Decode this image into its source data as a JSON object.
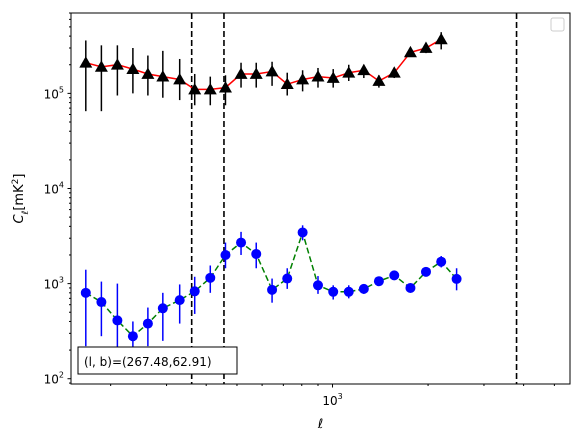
{
  "chart_data": {
    "type": "scatter",
    "x_scale": "log",
    "y_scale": "log",
    "xlim": [
      150,
      5600
    ],
    "ylim": [
      88,
      700000
    ],
    "xlabel": "ℓ",
    "ylabel_main": "C",
    "ylabel_sub": "ℓ",
    "ylabel_unit": "[mK",
    "ylabel_unit_sup": "2",
    "ylabel_unit_end": "]",
    "x_tick_labels": [
      {
        "value": 1000,
        "base": "10",
        "exp": "3"
      }
    ],
    "y_tick_labels": [
      {
        "value": 100,
        "base": "10",
        "exp": "2"
      },
      {
        "value": 1000,
        "base": "10",
        "exp": "3"
      },
      {
        "value": 10000,
        "base": "10",
        "exp": "4"
      },
      {
        "value": 100000,
        "base": "10",
        "exp": "5"
      }
    ],
    "vlines": [
      360,
      455,
      3800
    ],
    "annotation": "(l, b)=(267.48,62.91)",
    "legend": {
      "position": "top-right",
      "entries": []
    },
    "series": [
      {
        "marker": "triangle",
        "marker_color": "#000000",
        "line_color": "#ff0000",
        "line_style": "solid",
        "points": [
          {
            "x": 167,
            "y": 210000,
            "lo": 65000,
            "hi": 360000
          },
          {
            "x": 187,
            "y": 190000,
            "lo": 65000,
            "hi": 320000
          },
          {
            "x": 210,
            "y": 200000,
            "lo": 95000,
            "hi": 320000
          },
          {
            "x": 235,
            "y": 180000,
            "lo": 100000,
            "hi": 300000
          },
          {
            "x": 262,
            "y": 160000,
            "lo": 95000,
            "hi": 250000
          },
          {
            "x": 292,
            "y": 150000,
            "lo": 90000,
            "hi": 280000
          },
          {
            "x": 330,
            "y": 140000,
            "lo": 85000,
            "hi": 230000
          },
          {
            "x": 368,
            "y": 110000,
            "lo": 75000,
            "hi": 160000
          },
          {
            "x": 412,
            "y": 110000,
            "lo": 75000,
            "hi": 150000
          },
          {
            "x": 460,
            "y": 115000,
            "lo": 75000,
            "hi": 155000
          },
          {
            "x": 515,
            "y": 160000,
            "lo": 115000,
            "hi": 210000
          },
          {
            "x": 575,
            "y": 160000,
            "lo": 115000,
            "hi": 210000
          },
          {
            "x": 645,
            "y": 170000,
            "lo": 120000,
            "hi": 215000
          },
          {
            "x": 720,
            "y": 125000,
            "lo": 95000,
            "hi": 165000
          },
          {
            "x": 805,
            "y": 140000,
            "lo": 105000,
            "hi": 175000
          },
          {
            "x": 900,
            "y": 150000,
            "lo": 115000,
            "hi": 185000
          },
          {
            "x": 1005,
            "y": 145000,
            "lo": 115000,
            "hi": 180000
          },
          {
            "x": 1125,
            "y": 165000,
            "lo": 135000,
            "hi": 200000
          },
          {
            "x": 1255,
            "y": 175000,
            "lo": 145000,
            "hi": 200000
          },
          {
            "x": 1400,
            "y": 135000,
            "lo": 115000,
            "hi": 155000
          },
          {
            "x": 1565,
            "y": 165000,
            "lo": 145000,
            "hi": 185000
          },
          {
            "x": 1760,
            "y": 270000,
            "lo": 245000,
            "hi": 300000
          },
          {
            "x": 1970,
            "y": 300000,
            "lo": 265000,
            "hi": 335000
          },
          {
            "x": 2200,
            "y": 370000,
            "lo": 290000,
            "hi": 440000
          }
        ]
      },
      {
        "marker": "circle",
        "marker_color": "#0000ff",
        "line_color": "#008000",
        "line_style": "dashed",
        "points": [
          {
            "x": 167,
            "y": 800,
            "lo": 220,
            "hi": 1400
          },
          {
            "x": 187,
            "y": 640,
            "lo": 280,
            "hi": 1050
          },
          {
            "x": 210,
            "y": 410,
            "lo": 200,
            "hi": 1000
          },
          {
            "x": 235,
            "y": 280,
            "lo": 180,
            "hi": 400
          },
          {
            "x": 262,
            "y": 380,
            "lo": 220,
            "hi": 560
          },
          {
            "x": 292,
            "y": 550,
            "lo": 250,
            "hi": 800
          },
          {
            "x": 330,
            "y": 670,
            "lo": 380,
            "hi": 980
          },
          {
            "x": 368,
            "y": 830,
            "lo": 480,
            "hi": 1180
          },
          {
            "x": 412,
            "y": 1150,
            "lo": 800,
            "hi": 1550
          },
          {
            "x": 460,
            "y": 2000,
            "lo": 1450,
            "hi": 2700
          },
          {
            "x": 515,
            "y": 2700,
            "lo": 2000,
            "hi": 3500
          },
          {
            "x": 575,
            "y": 2050,
            "lo": 1450,
            "hi": 2700
          },
          {
            "x": 645,
            "y": 860,
            "lo": 630,
            "hi": 1130
          },
          {
            "x": 720,
            "y": 1130,
            "lo": 880,
            "hi": 1450
          },
          {
            "x": 805,
            "y": 3450,
            "lo": 2850,
            "hi": 4100
          },
          {
            "x": 900,
            "y": 960,
            "lo": 780,
            "hi": 1200
          },
          {
            "x": 1005,
            "y": 820,
            "lo": 680,
            "hi": 960
          },
          {
            "x": 1125,
            "y": 820,
            "lo": 700,
            "hi": 960
          },
          {
            "x": 1255,
            "y": 880,
            "lo": 780,
            "hi": 990
          },
          {
            "x": 1400,
            "y": 1060,
            "lo": 950,
            "hi": 1180
          },
          {
            "x": 1565,
            "y": 1220,
            "lo": 1100,
            "hi": 1350
          },
          {
            "x": 1760,
            "y": 900,
            "lo": 820,
            "hi": 980
          },
          {
            "x": 1970,
            "y": 1330,
            "lo": 1200,
            "hi": 1460
          },
          {
            "x": 2200,
            "y": 1700,
            "lo": 1480,
            "hi": 1950
          },
          {
            "x": 2460,
            "y": 1120,
            "lo": 850,
            "hi": 1450
          }
        ]
      }
    ]
  }
}
